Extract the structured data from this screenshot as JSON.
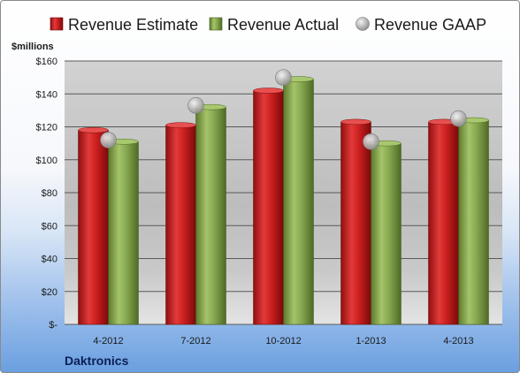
{
  "chart_data": {
    "type": "bar",
    "ylabel": "$millions",
    "ylim": [
      0,
      160
    ],
    "yticks": [
      0,
      20,
      40,
      60,
      80,
      100,
      120,
      140,
      160
    ],
    "ytick_labels": [
      "$-",
      "$20",
      "$40",
      "$60",
      "$80",
      "$100",
      "$120",
      "$140",
      "$160"
    ],
    "categories": [
      "4-2012",
      "7-2012",
      "10-2012",
      "1-2013",
      "4-2013"
    ],
    "series": [
      {
        "name": "Revenue Estimate",
        "kind": "bar",
        "color": "#cc1f1f",
        "values": [
          118,
          121,
          142,
          123,
          123
        ]
      },
      {
        "name": "Revenue Actual",
        "kind": "bar",
        "color": "#7fa04a",
        "values": [
          111,
          132,
          149,
          110,
          124
        ]
      },
      {
        "name": "Revenue GAAP",
        "kind": "marker",
        "color": "#b8b8b8",
        "values": [
          112,
          133,
          150,
          111,
          125
        ]
      }
    ],
    "legend_position": "top",
    "grid": true
  },
  "company": "Daktronics"
}
